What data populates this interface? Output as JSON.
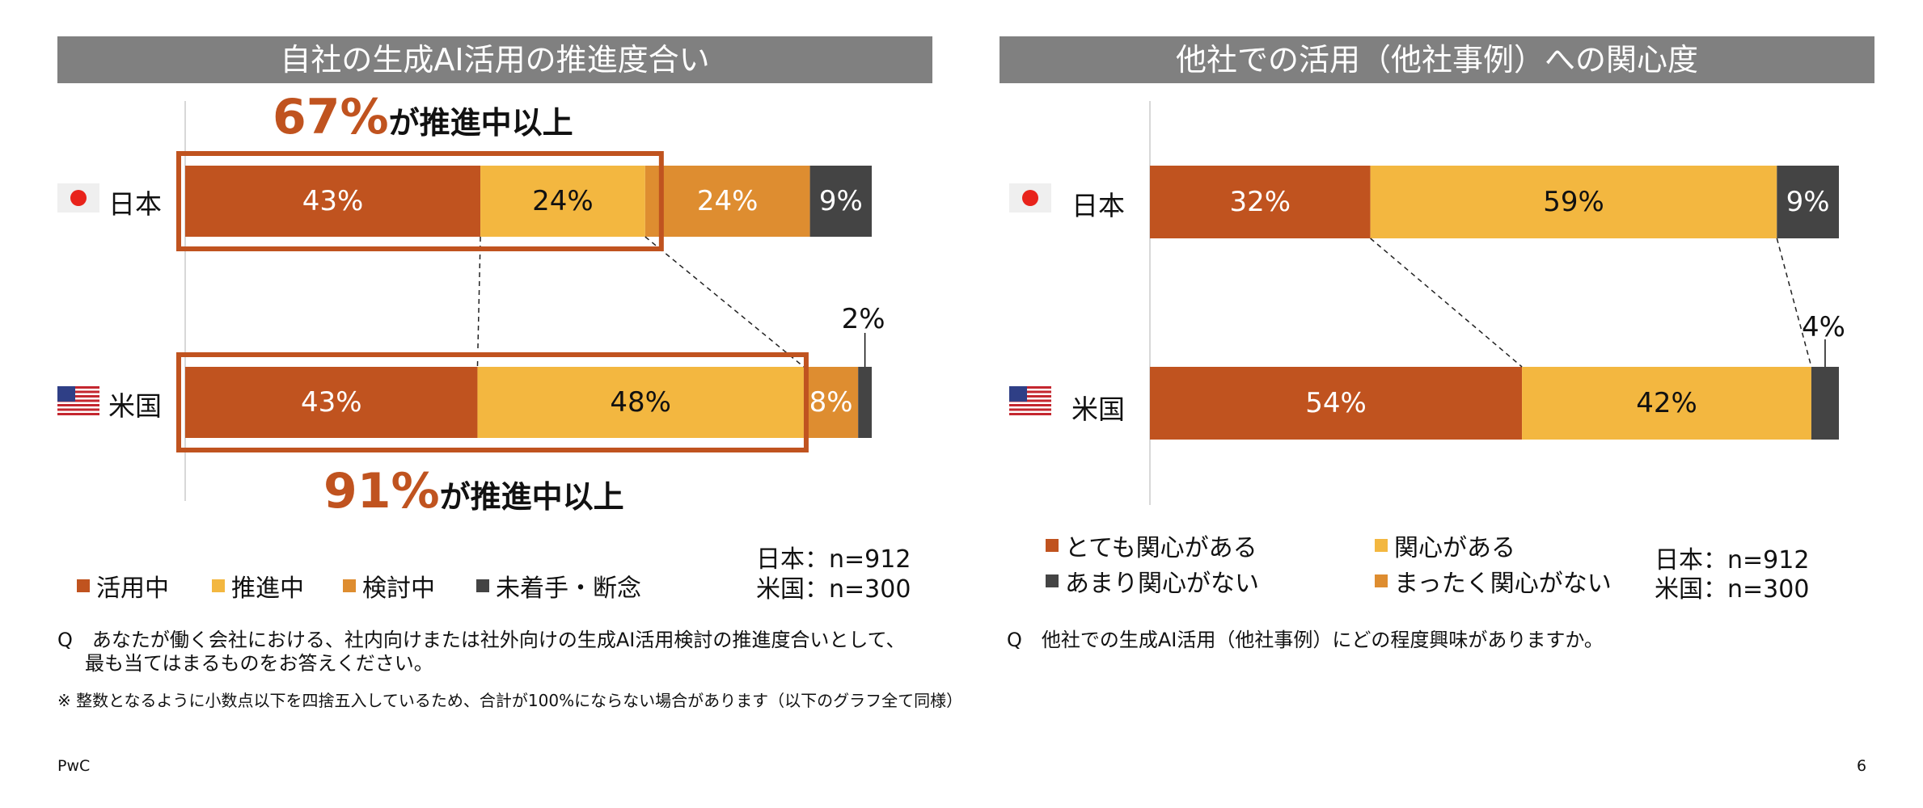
{
  "left_panel": {
    "title": "自社の生成AI活用の推進度合い",
    "callout_top": {
      "pct": "67%",
      "rest": "が推進中以上"
    },
    "callout_bottom": {
      "pct": "91%",
      "rest": "が推進中以上"
    },
    "countries": {
      "japan": "日本",
      "us": "米国"
    },
    "sample": {
      "japan": "日本：n=912",
      "us": "米国：n=300"
    },
    "question": [
      "Q　あなたが働く会社における、社内向けまたは社外向けの生成AI活用検討の推進度合いとして、",
      "最も当てはまるものをお答えください。"
    ],
    "footnote": "※ 整数となるように小数点以下を四捨五入しているため、合計が100%にならない場合があります（以下のグラフ全て同様）"
  },
  "right_panel": {
    "title": "他社での活用（他社事例）への関心度",
    "countries": {
      "japan": "日本",
      "us": "米国"
    },
    "sample": {
      "japan": "日本：n=912",
      "us": "米国：n=300"
    },
    "question": "Q　他社での生成AI活用（他社事例）にどの程度興味がありますか。"
  },
  "footer": {
    "brand": "PwC",
    "page": "6"
  },
  "colors": {
    "dark_orange": "#c0531f",
    "yellow": "#f3b740",
    "orange": "#de8d30",
    "dark_gray": "#444444",
    "title_bar": "#808080"
  },
  "chart_data": [
    {
      "type": "bar",
      "orientation": "horizontal-stacked-100",
      "title": "自社の生成AI活用の推進度合い",
      "categories": [
        "日本",
        "米国"
      ],
      "series": [
        {
          "name": "活用中",
          "values": [
            43,
            43
          ],
          "labels": [
            "43%",
            "43%"
          ],
          "color": "#c0531f"
        },
        {
          "name": "推進中",
          "values": [
            24,
            48
          ],
          "labels": [
            "24%",
            "48%"
          ],
          "color": "#f3b740"
        },
        {
          "name": "検討中",
          "values": [
            24,
            8
          ],
          "labels": [
            "24%",
            "8%"
          ],
          "color": "#de8d30"
        },
        {
          "name": "未着手・断念",
          "values": [
            9,
            2
          ],
          "labels": [
            "9%",
            "2%"
          ],
          "color": "#444444"
        }
      ],
      "legend": "bottom"
    },
    {
      "type": "bar",
      "orientation": "horizontal-stacked-100",
      "title": "他社での活用（他社事例）への関心度",
      "categories": [
        "日本",
        "米国"
      ],
      "series": [
        {
          "name": "とても関心がある",
          "values": [
            32,
            54
          ],
          "labels": [
            "32%",
            "54%"
          ],
          "color": "#c0531f"
        },
        {
          "name": "関心がある",
          "values": [
            59,
            42
          ],
          "labels": [
            "59%",
            "42%"
          ],
          "color": "#f3b740"
        },
        {
          "name": "あまり関心がない",
          "values": [
            9,
            4
          ],
          "labels": [
            "9%",
            "4%"
          ],
          "color": "#444444"
        },
        {
          "name": "まったく関心がない",
          "values": [
            0,
            0
          ],
          "labels": [
            "",
            ""
          ],
          "color": "#de8d30"
        }
      ],
      "legend": "bottom"
    }
  ]
}
